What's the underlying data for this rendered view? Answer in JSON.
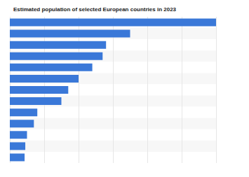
{
  "chart_data": {
    "type": "bar",
    "title": "Estimated population of selected European countries in 2023",
    "orientation": "horizontal",
    "categories": [
      null,
      null,
      null,
      null,
      null,
      null,
      null,
      null,
      null,
      null,
      null,
      null,
      null
    ],
    "values": [
      60,
      35,
      28,
      27,
      24,
      20,
      17,
      15,
      8,
      7,
      5,
      4.5,
      4.3
    ],
    "color": "#3a78d8",
    "xlim": [
      0,
      60
    ],
    "xticks": [
      0,
      10,
      20,
      30,
      40,
      50,
      60
    ],
    "grid": true,
    "tick_labels": false
  }
}
